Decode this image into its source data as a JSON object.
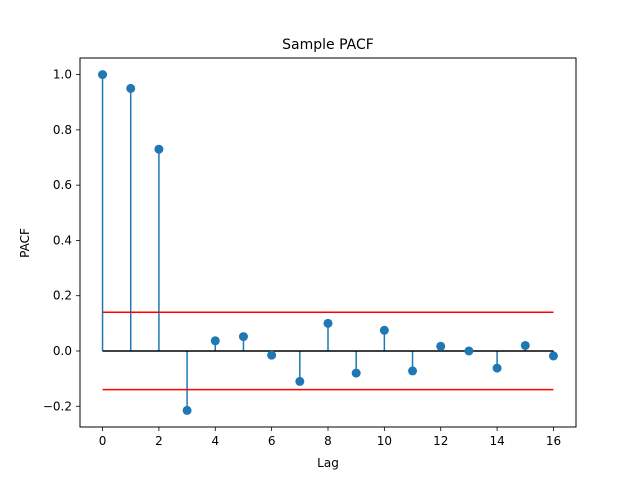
{
  "chart_data": {
    "type": "stem",
    "title": "Sample PACF",
    "xlabel": "Lag",
    "ylabel": "PACF",
    "xlim": [
      -0.8,
      16.8
    ],
    "ylim": [
      -0.275,
      1.06
    ],
    "xticks": [
      0,
      2,
      4,
      6,
      8,
      10,
      12,
      14,
      16
    ],
    "yticks": [
      -0.2,
      0.0,
      0.2,
      0.4,
      0.6,
      0.8,
      1.0
    ],
    "ytick_labels": [
      "−0.2",
      "0.0",
      "0.2",
      "0.4",
      "0.6",
      "0.8",
      "1.0"
    ],
    "grid": false,
    "series": [
      {
        "x": [
          0,
          1,
          2,
          3,
          4,
          5,
          6,
          7,
          8,
          9,
          10,
          11,
          12,
          13,
          14,
          15,
          16
        ],
        "values": [
          1.0,
          0.95,
          0.73,
          -0.215,
          0.037,
          0.052,
          -0.015,
          -0.11,
          0.1,
          -0.08,
          0.075,
          -0.072,
          0.017,
          0.0,
          -0.062,
          0.02,
          -0.018
        ],
        "color": "#1f77b4"
      }
    ],
    "confidence_bounds": {
      "upper": 0.14,
      "lower": -0.14,
      "x_range": [
        0,
        16
      ],
      "color": "#ff0000"
    },
    "baseline": {
      "y": 0,
      "x_range": [
        0,
        16
      ],
      "color": "#000000"
    }
  }
}
